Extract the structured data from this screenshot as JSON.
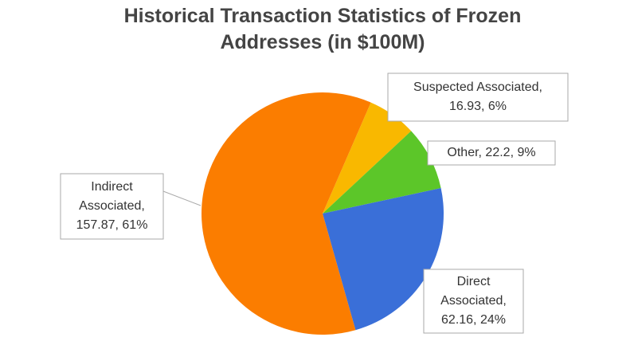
{
  "chart_data": {
    "type": "pie",
    "title": "Historical Transaction Statistics of Frozen Addresses (in $100M)",
    "values": [
      16.93,
      22.2,
      62.16,
      157.87
    ],
    "value_labels": [
      [
        "Suspected Associated,",
        "16.93, 6%"
      ],
      [
        "Other, 22.2, 9%"
      ],
      [
        "Direct",
        "Associated,",
        "62.16, 24%"
      ],
      [
        "Indirect",
        "Associated,",
        "157.87, 61%"
      ]
    ],
    "colors": [
      "#f9b800",
      "#5cc629",
      "#3a6fd8",
      "#fb7d00"
    ]
  }
}
